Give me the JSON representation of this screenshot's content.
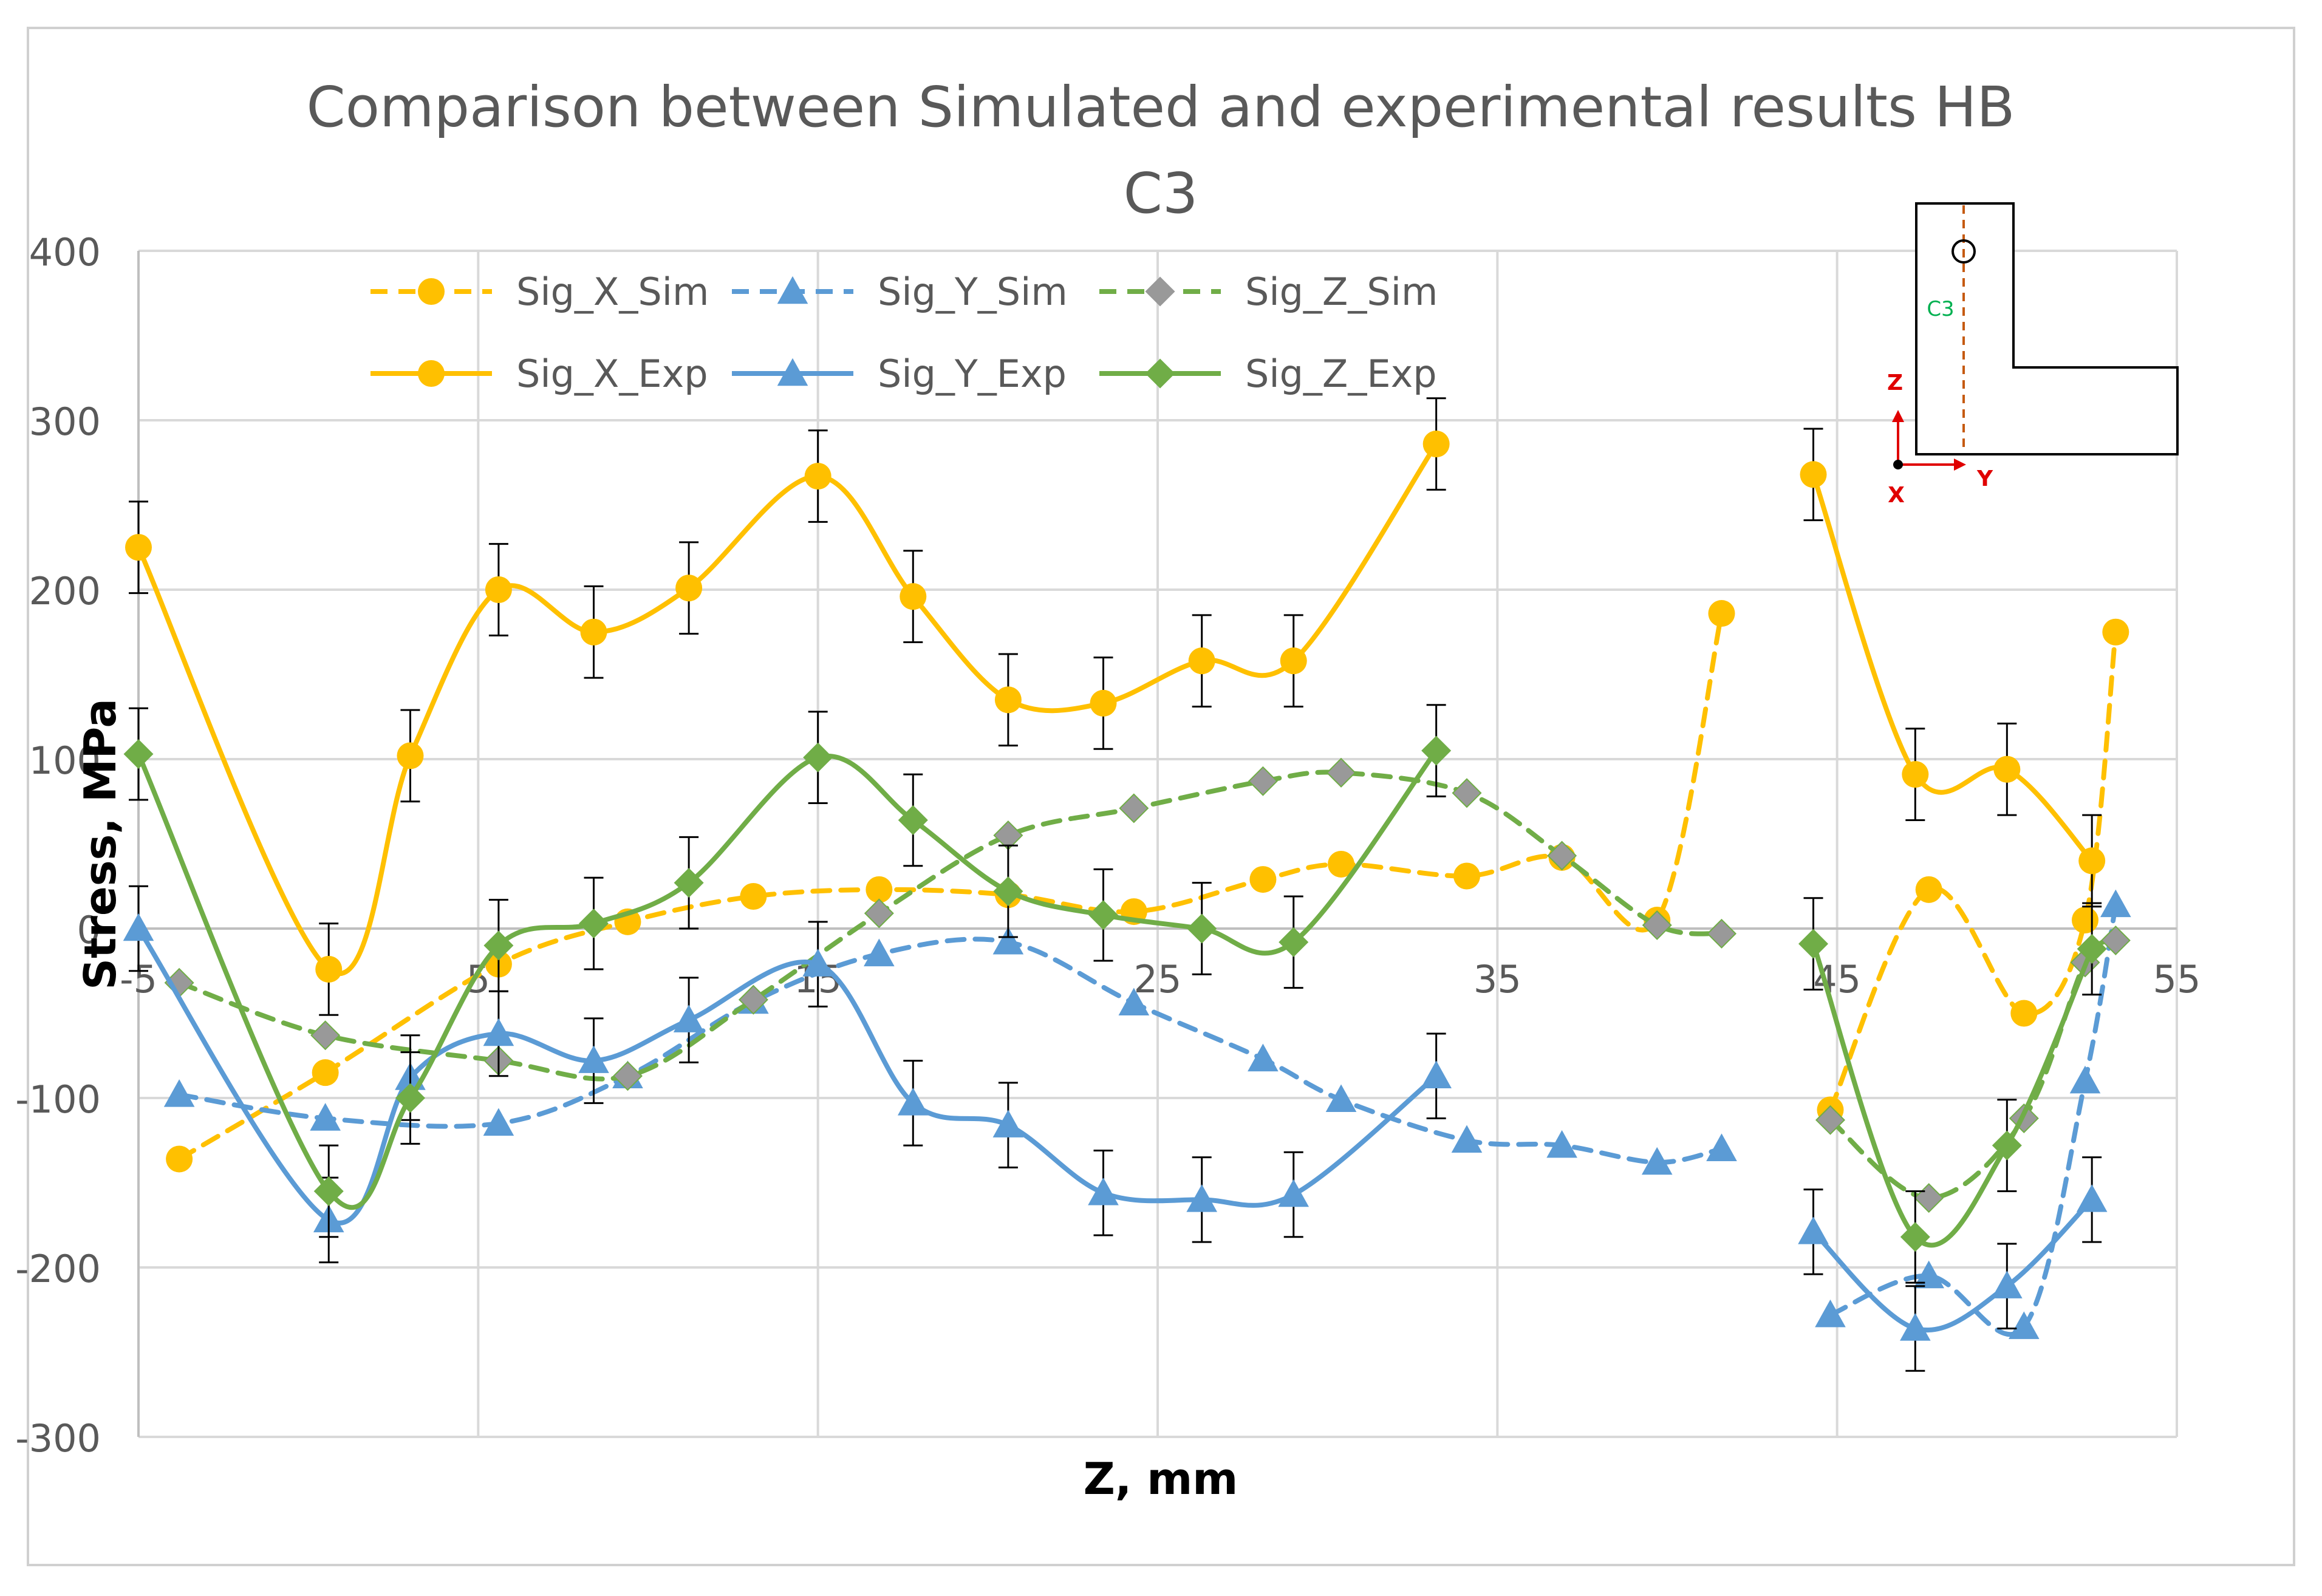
{
  "chart_data": {
    "type": "line",
    "title_line1": "Comparison between Simulated and experimental results HB",
    "title_line2": "C3",
    "xlabel": "Z, mm",
    "ylabel": "Stress, MPa",
    "xlim": [
      -5,
      55
    ],
    "ylim": [
      -300,
      400
    ],
    "xticks": [
      -5,
      5,
      15,
      25,
      35,
      45,
      55
    ],
    "xtick_labels": [
      "-5",
      "5",
      "15",
      "25",
      "35",
      "45",
      "55"
    ],
    "yticks": [
      -300,
      -200,
      -100,
      0,
      100,
      200,
      300,
      400
    ],
    "ytick_labels": [
      "-300",
      "-200",
      "-100",
      "0",
      "100",
      "200",
      "300",
      "400"
    ],
    "grid": true,
    "legend_position": "top-left",
    "series": [
      {
        "name": "Sig_X_Sim",
        "color": "#FFC000",
        "dash": true,
        "marker": "circle",
        "segments": [
          [
            [
              -3.8,
              -136
            ],
            [
              0.5,
              -85
            ],
            [
              5.6,
              -21
            ],
            [
              9.4,
              4
            ],
            [
              13.1,
              19
            ],
            [
              16.8,
              23
            ],
            [
              20.6,
              20
            ],
            [
              24.3,
              10
            ],
            [
              28.1,
              29
            ],
            [
              30.4,
              38
            ],
            [
              34.1,
              31
            ],
            [
              36.9,
              42
            ],
            [
              39.7,
              5
            ],
            [
              41.6,
              186
            ]
          ],
          [
            [
              44.8,
              -107
            ],
            [
              47.7,
              23
            ],
            [
              50.5,
              -50
            ],
            [
              52.3,
              5
            ],
            [
              53.2,
              175
            ]
          ]
        ]
      },
      {
        "name": "Sig_Y_Sim",
        "color": "#5B9BD5",
        "dash": true,
        "marker": "triangle",
        "segments": [
          [
            [
              -3.8,
              -98
            ],
            [
              0.5,
              -112
            ],
            [
              5.6,
              -115
            ],
            [
              9.4,
              -87
            ],
            [
              13.1,
              -43
            ],
            [
              16.8,
              -15
            ],
            [
              20.6,
              -8
            ],
            [
              24.3,
              -44
            ],
            [
              28.1,
              -77
            ],
            [
              30.4,
              -101
            ],
            [
              34.1,
              -125
            ],
            [
              36.9,
              -128
            ],
            [
              39.7,
              -138
            ],
            [
              41.6,
              -130
            ]
          ],
          [
            [
              44.8,
              -228
            ],
            [
              47.7,
              -205
            ],
            [
              50.5,
              -235
            ],
            [
              52.3,
              -90
            ],
            [
              53.2,
              14
            ]
          ]
        ]
      },
      {
        "name": "Sig_Z_Sim",
        "color": "#70AD47",
        "dash": true,
        "marker": "diamond",
        "segments": [
          [
            [
              -3.8,
              -32
            ],
            [
              0.5,
              -63
            ],
            [
              5.6,
              -78
            ],
            [
              9.4,
              -87
            ],
            [
              13.1,
              -42
            ],
            [
              16.8,
              9
            ],
            [
              20.6,
              55
            ],
            [
              24.3,
              71
            ],
            [
              28.1,
              87
            ],
            [
              30.4,
              92
            ],
            [
              34.1,
              80
            ],
            [
              36.9,
              43
            ],
            [
              39.7,
              2
            ],
            [
              41.6,
              -3
            ]
          ],
          [
            [
              44.8,
              -113
            ],
            [
              47.7,
              -159
            ],
            [
              50.5,
              -112
            ],
            [
              52.3,
              -20
            ],
            [
              53.2,
              -7
            ]
          ]
        ]
      },
      {
        "name": "Sig_X_Exp",
        "color": "#FFC000",
        "dash": false,
        "marker": "circle",
        "error": 27,
        "segments": [
          [
            [
              -5,
              225
            ],
            [
              0.6,
              -24
            ],
            [
              3,
              102
            ],
            [
              5.6,
              200
            ],
            [
              8.4,
              175
            ],
            [
              11.2,
              201
            ],
            [
              15,
              267
            ],
            [
              17.8,
              196
            ],
            [
              20.6,
              135
            ],
            [
              23.4,
              133
            ],
            [
              26.3,
              158
            ],
            [
              29,
              158
            ],
            [
              33.2,
              286
            ]
          ],
          [
            [
              44.3,
              268
            ],
            [
              47.3,
              91
            ],
            [
              50,
              94
            ],
            [
              52.5,
              40
            ]
          ]
        ]
      },
      {
        "name": "Sig_Y_Exp",
        "color": "#5B9BD5",
        "dash": false,
        "marker": "triangle",
        "error": 25,
        "segments": [
          [
            [
              -5,
              0
            ],
            [
              0.6,
              -172
            ],
            [
              3,
              -88
            ],
            [
              5.6,
              -62
            ],
            [
              8.4,
              -78
            ],
            [
              11.2,
              -54
            ],
            [
              15,
              -21
            ],
            [
              17.8,
              -103
            ],
            [
              20.6,
              -116
            ],
            [
              23.4,
              -156
            ],
            [
              26.3,
              -160
            ],
            [
              29,
              -157
            ],
            [
              33.2,
              -87
            ]
          ],
          [
            [
              44.3,
              -179
            ],
            [
              47.3,
              -236
            ],
            [
              50,
              -211
            ],
            [
              52.5,
              -160
            ]
          ]
        ]
      },
      {
        "name": "Sig_Z_Exp",
        "color": "#70AD47",
        "dash": false,
        "marker": "diamond",
        "error": 27,
        "segments": [
          [
            [
              -5,
              103
            ],
            [
              0.6,
              -155
            ],
            [
              3,
              -100
            ],
            [
              5.6,
              -10
            ],
            [
              8.4,
              3
            ],
            [
              11.2,
              27
            ],
            [
              15,
              101
            ],
            [
              17.8,
              64
            ],
            [
              20.6,
              22
            ],
            [
              23.4,
              8
            ],
            [
              26.3,
              0
            ],
            [
              29,
              -8
            ],
            [
              33.2,
              105
            ]
          ],
          [
            [
              44.3,
              -9
            ],
            [
              47.3,
              -182
            ],
            [
              50,
              -128
            ],
            [
              52.5,
              -12
            ]
          ]
        ]
      }
    ],
    "inset": {
      "label_c3": "C3",
      "axis_z": "Z",
      "axis_y": "Y",
      "axis_x": "X"
    }
  }
}
